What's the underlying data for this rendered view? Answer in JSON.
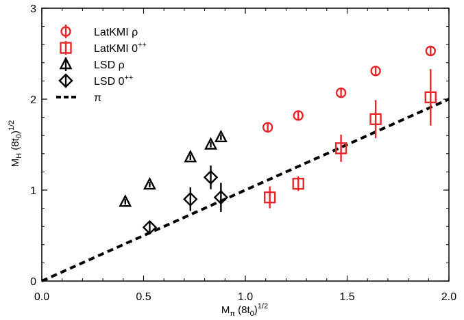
{
  "chart_data": {
    "type": "scatter",
    "xlabel": {
      "main": "M",
      "sub": "π",
      "rest": " (8t",
      "sub2": "0",
      "tail": ")",
      "sup": "1/2"
    },
    "ylabel": {
      "main": "M",
      "sub": "H",
      "rest": " (8t",
      "sub2": "0",
      "tail": ")",
      "sup": "1/2"
    },
    "xlim": [
      0,
      2.0
    ],
    "ylim": [
      0,
      3
    ],
    "x_ticks": [
      "0.0",
      "0.5",
      "1.0",
      "1.5",
      "2.0"
    ],
    "y_ticks": [
      "0",
      "1",
      "2",
      "3"
    ],
    "legend_position": "top-left",
    "colors": {
      "latkmi": "#e8262a",
      "lsd": "#000000"
    },
    "series": [
      {
        "name": "LatKMI ρ",
        "legend_main": "LatKMI ρ",
        "legend_sup": "",
        "marker": "circle",
        "color": "#e8262a",
        "points": [
          {
            "x": 1.11,
            "y": 1.69,
            "err": 0.05
          },
          {
            "x": 1.26,
            "y": 1.82,
            "err": 0.05
          },
          {
            "x": 1.47,
            "y": 2.07,
            "err": 0.05
          },
          {
            "x": 1.64,
            "y": 2.31,
            "err": 0.05
          },
          {
            "x": 1.91,
            "y": 2.53,
            "err": 0.05
          }
        ]
      },
      {
        "name": "LatKMI 0++",
        "legend_main": "LatKMI 0",
        "legend_sup": "++",
        "marker": "square",
        "color": "#e8262a",
        "points": [
          {
            "x": 1.12,
            "y": 0.92,
            "err": 0.12
          },
          {
            "x": 1.26,
            "y": 1.07,
            "err": 0.08
          },
          {
            "x": 1.47,
            "y": 1.46,
            "err": 0.15
          },
          {
            "x": 1.64,
            "y": 1.78,
            "err": 0.21
          },
          {
            "x": 1.91,
            "y": 2.02,
            "err": 0.31
          }
        ]
      },
      {
        "name": "LSD ρ",
        "legend_main": "LSD ρ",
        "legend_sup": "",
        "marker": "triangle",
        "color": "#000000",
        "points": [
          {
            "x": 0.41,
            "y": 0.87,
            "err": 0.03
          },
          {
            "x": 0.53,
            "y": 1.06,
            "err": 0.03
          },
          {
            "x": 0.73,
            "y": 1.36,
            "err": 0.03
          },
          {
            "x": 0.83,
            "y": 1.5,
            "err": 0.03
          },
          {
            "x": 0.88,
            "y": 1.58,
            "err": 0.03
          }
        ]
      },
      {
        "name": "LSD 0++",
        "legend_main": "LSD 0",
        "legend_sup": "++",
        "marker": "diamond",
        "color": "#000000",
        "points": [
          {
            "x": 0.53,
            "y": 0.59,
            "err": 0.06
          },
          {
            "x": 0.73,
            "y": 0.9,
            "err": 0.13
          },
          {
            "x": 0.83,
            "y": 1.14,
            "err": 0.13
          },
          {
            "x": 0.88,
            "y": 0.92,
            "err": 0.16
          }
        ]
      },
      {
        "name": "π",
        "legend_main": "π",
        "legend_sup": "",
        "marker": "dashed-line",
        "color": "#000000",
        "line": {
          "x": [
            0,
            2.0
          ],
          "y": [
            0,
            2.0
          ]
        }
      }
    ]
  }
}
